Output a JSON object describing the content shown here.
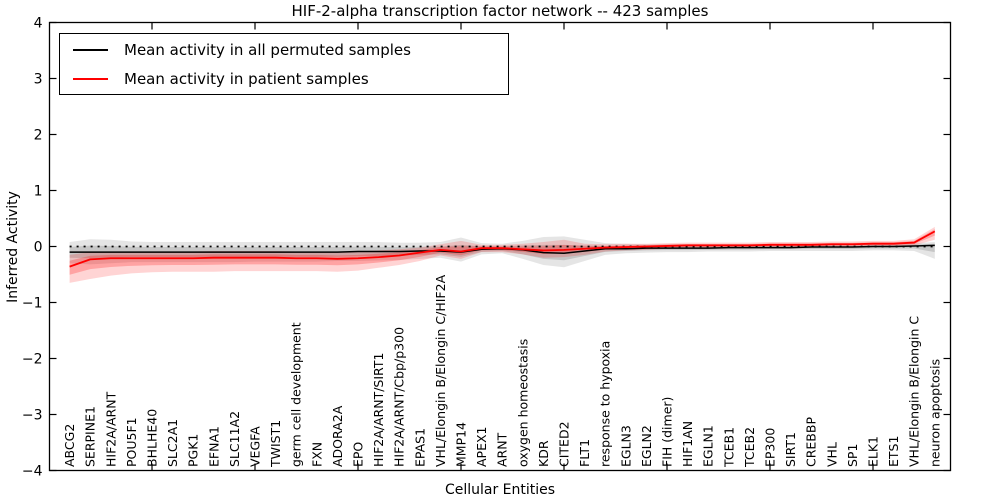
{
  "figure": {
    "title": "HIF-2-alpha transcription factor network -- 423 samples",
    "xlabel": "Cellular Entities",
    "ylabel": "Inferred Activity"
  },
  "legend": {
    "items": [
      {
        "label": "Mean activity in all permuted samples",
        "color": "#000000"
      },
      {
        "label": "Mean activity in patient samples",
        "color": "#ff0000"
      }
    ]
  },
  "chart_data": {
    "type": "line",
    "title": "HIF-2-alpha transcription factor network -- 423 samples",
    "xlabel": "Cellular Entities",
    "ylabel": "Inferred Activity",
    "ylim": [
      -4,
      4
    ],
    "yticks": [
      -4,
      -3,
      -2,
      -1,
      0,
      1,
      2,
      3,
      4
    ],
    "grid": false,
    "legend_position": "upper left",
    "zero_line": {
      "y": 0,
      "style": "dotted",
      "color": "#000000"
    },
    "xtick_start_index": 4,
    "xtick_every": 5,
    "inner_band_fraction": 0.5,
    "categories": [
      "ABCG2",
      "SERPINE1",
      "HIF2A/ARNT",
      "POU5F1",
      "BHLHE40",
      "SLC2A1",
      "PGK1",
      "EFNA1",
      "SLC11A2",
      "VEGFA",
      "TWIST1",
      "germ cell development",
      "FXN",
      "ADORA2A",
      "EPO",
      "HIF2A/ARNT/SIRT1",
      "HIF2A/ARNT/Cbp/p300",
      "EPAS1",
      "VHL/Elongin B/Elongin C/HIF2A",
      "MMP14",
      "APEX1",
      "ARNT",
      "oxygen homeostasis",
      "KDR",
      "CITED2",
      "FLT1",
      "response to hypoxia",
      "EGLN3",
      "EGLN2",
      "FIH (dimer)",
      "HIF1AN",
      "EGLN1",
      "TCEB1",
      "TCEB2",
      "EP300",
      "SIRT1",
      "CREBBP",
      "VHL",
      "SP1",
      "ELK1",
      "ETS1",
      "VHL/Elongin B/Elongin C",
      "neuron apoptosis"
    ],
    "series": [
      {
        "name": "Mean activity in all permuted samples",
        "color": "#000000",
        "band_color": "#000000",
        "band_opacity": 0.1,
        "values": [
          -0.1,
          -0.1,
          -0.1,
          -0.1,
          -0.1,
          -0.1,
          -0.1,
          -0.1,
          -0.1,
          -0.1,
          -0.1,
          -0.1,
          -0.1,
          -0.1,
          -0.09,
          -0.09,
          -0.09,
          -0.08,
          -0.08,
          -0.1,
          -0.05,
          -0.04,
          -0.06,
          -0.11,
          -0.12,
          -0.08,
          -0.04,
          -0.04,
          -0.03,
          -0.03,
          -0.03,
          -0.03,
          -0.02,
          -0.02,
          -0.02,
          -0.02,
          -0.01,
          -0.01,
          -0.01,
          0.0,
          0.0,
          0.01,
          0.02
        ],
        "band_upper": [
          0.08,
          0.13,
          0.12,
          0.09,
          0.08,
          0.08,
          0.08,
          0.08,
          0.08,
          0.08,
          0.08,
          0.08,
          0.08,
          0.08,
          0.08,
          0.08,
          0.07,
          0.07,
          0.08,
          0.16,
          0.06,
          0.05,
          0.1,
          0.17,
          0.18,
          0.12,
          0.06,
          0.05,
          0.04,
          0.04,
          0.04,
          0.04,
          0.04,
          0.04,
          0.04,
          0.04,
          0.04,
          0.04,
          0.04,
          0.05,
          0.05,
          0.06,
          0.08
        ],
        "band_lower": [
          -0.3,
          -0.32,
          -0.3,
          -0.28,
          -0.28,
          -0.28,
          -0.28,
          -0.28,
          -0.28,
          -0.27,
          -0.27,
          -0.27,
          -0.27,
          -0.26,
          -0.26,
          -0.25,
          -0.24,
          -0.22,
          -0.2,
          -0.27,
          -0.14,
          -0.12,
          -0.22,
          -0.33,
          -0.37,
          -0.26,
          -0.15,
          -0.12,
          -0.11,
          -0.1,
          -0.1,
          -0.09,
          -0.09,
          -0.09,
          -0.08,
          -0.08,
          -0.08,
          -0.08,
          -0.08,
          -0.07,
          -0.07,
          -0.08,
          -0.22
        ]
      },
      {
        "name": "Mean activity in patient samples",
        "color": "#ff0000",
        "band_color": "#ff0000",
        "band_opacity": 0.17,
        "values": [
          -0.36,
          -0.23,
          -0.21,
          -0.21,
          -0.21,
          -0.21,
          -0.21,
          -0.2,
          -0.2,
          -0.2,
          -0.2,
          -0.21,
          -0.21,
          -0.22,
          -0.21,
          -0.19,
          -0.16,
          -0.11,
          -0.06,
          -0.09,
          -0.03,
          -0.03,
          -0.05,
          -0.07,
          -0.06,
          -0.04,
          -0.02,
          -0.01,
          0.0,
          0.01,
          0.02,
          0.02,
          0.02,
          0.02,
          0.03,
          0.03,
          0.03,
          0.04,
          0.04,
          0.05,
          0.05,
          0.07,
          0.27
        ],
        "band_upper": [
          -0.15,
          -0.1,
          -0.09,
          -0.09,
          -0.09,
          -0.09,
          -0.09,
          -0.08,
          -0.08,
          -0.08,
          -0.08,
          -0.09,
          -0.09,
          -0.1,
          -0.09,
          -0.07,
          -0.05,
          -0.02,
          0.04,
          0.1,
          0.03,
          0.03,
          0.05,
          0.08,
          0.12,
          0.05,
          0.04,
          0.05,
          0.05,
          0.06,
          0.07,
          0.07,
          0.07,
          0.07,
          0.08,
          0.08,
          0.08,
          0.09,
          0.09,
          0.1,
          0.1,
          0.13,
          0.35
        ],
        "band_lower": [
          -0.65,
          -0.58,
          -0.52,
          -0.48,
          -0.46,
          -0.45,
          -0.45,
          -0.45,
          -0.44,
          -0.44,
          -0.44,
          -0.44,
          -0.44,
          -0.45,
          -0.43,
          -0.38,
          -0.33,
          -0.26,
          -0.16,
          -0.22,
          -0.1,
          -0.1,
          -0.14,
          -0.2,
          -0.19,
          -0.15,
          -0.09,
          -0.07,
          -0.06,
          -0.04,
          -0.03,
          -0.03,
          -0.03,
          -0.03,
          -0.02,
          -0.02,
          -0.02,
          -0.01,
          -0.01,
          0.0,
          0.0,
          0.02,
          0.12
        ]
      }
    ]
  }
}
